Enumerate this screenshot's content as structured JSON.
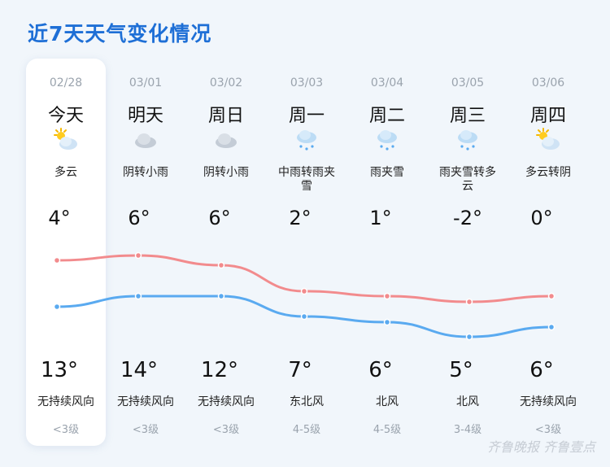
{
  "title": "近7天天气变化情况",
  "colors": {
    "high_line": "#f28b8d",
    "low_line": "#5aaaf0",
    "title": "#1e6fd6"
  },
  "days": [
    {
      "date": "02/28",
      "day": "今天",
      "icon": "partly-cloudy-sun-icon",
      "condition": "多云",
      "high": "4°",
      "low": "13°",
      "wind": "无持续风向",
      "level": "<3级"
    },
    {
      "date": "03/01",
      "day": "明天",
      "icon": "cloud-icon",
      "condition": "阴转小雨",
      "high": "6°",
      "low": "14°",
      "wind": "无持续风向",
      "level": "<3级"
    },
    {
      "date": "03/02",
      "day": "周日",
      "icon": "cloud-icon",
      "condition": "阴转小雨",
      "high": "6°",
      "low": "12°",
      "wind": "无持续风向",
      "level": "<3级"
    },
    {
      "date": "03/03",
      "day": "周一",
      "icon": "sleet-icon",
      "condition": "中雨转雨夹雪",
      "high": "2°",
      "low": "7°",
      "wind": "东北风",
      "level": "4-5级"
    },
    {
      "date": "03/04",
      "day": "周二",
      "icon": "sleet-icon",
      "condition": "雨夹雪",
      "high": "1°",
      "low": "6°",
      "wind": "北风",
      "level": "4-5级"
    },
    {
      "date": "03/05",
      "day": "周三",
      "icon": "sleet-icon",
      "condition": "雨夹雪转多云",
      "high": "-2°",
      "low": "5°",
      "wind": "北风",
      "level": "3-4级"
    },
    {
      "date": "03/06",
      "day": "周四",
      "icon": "partly-cloudy-sun-icon",
      "condition": "多云转阴",
      "high": "0°",
      "low": "6°",
      "wind": "无持续风向",
      "level": "<3级"
    }
  ],
  "watermark": "齐鲁晚报 齐鲁壹点"
}
